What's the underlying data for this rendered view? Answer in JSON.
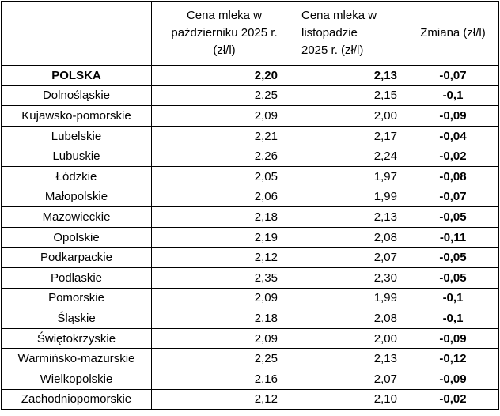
{
  "colors": {
    "border": "#000000",
    "background": "#ffffff",
    "text": "#000000"
  },
  "chart_data": {
    "type": "table",
    "title": "",
    "columns": [
      "",
      "Cena mleka w\npaździerniku 2025 r.\n(zł/l)",
      "Cena mleka w\nlistopadzie\n2025 r. (zł/l)",
      "Zmiana (zł/l)"
    ],
    "rows": [
      {
        "region": "POLSKA",
        "october_2025": "2,20",
        "november_2025": "2,13",
        "change": "-0,07",
        "emphasis": true
      },
      {
        "region": "Dolnośląskie",
        "october_2025": "2,25",
        "november_2025": "2,15",
        "change": "-0,1",
        "emphasis": false
      },
      {
        "region": "Kujawsko-pomorskie",
        "october_2025": "2,09",
        "november_2025": "2,00",
        "change": "-0,09",
        "emphasis": false
      },
      {
        "region": "Lubelskie",
        "october_2025": "2,21",
        "november_2025": "2,17",
        "change": "-0,04",
        "emphasis": false
      },
      {
        "region": "Lubuskie",
        "october_2025": "2,26",
        "november_2025": "2,24",
        "change": "-0,02",
        "emphasis": false
      },
      {
        "region": "Łódzkie",
        "october_2025": "2,05",
        "november_2025": "1,97",
        "change": "-0,08",
        "emphasis": false
      },
      {
        "region": "Małopolskie",
        "october_2025": "2,06",
        "november_2025": "1,99",
        "change": "-0,07",
        "emphasis": false
      },
      {
        "region": "Mazowieckie",
        "october_2025": "2,18",
        "november_2025": "2,13",
        "change": "-0,05",
        "emphasis": false
      },
      {
        "region": "Opolskie",
        "october_2025": "2,19",
        "november_2025": "2,08",
        "change": "-0,11",
        "emphasis": false
      },
      {
        "region": "Podkarpackie",
        "october_2025": "2,12",
        "november_2025": "2,07",
        "change": "-0,05",
        "emphasis": false
      },
      {
        "region": "Podlaskie",
        "october_2025": "2,35",
        "november_2025": "2,30",
        "change": "-0,05",
        "emphasis": false
      },
      {
        "region": "Pomorskie",
        "october_2025": "2,09",
        "november_2025": "1,99",
        "change": "-0,1",
        "emphasis": false
      },
      {
        "region": "Śląskie",
        "october_2025": "2,18",
        "november_2025": "2,08",
        "change": "-0,1",
        "emphasis": false
      },
      {
        "region": "Świętokrzyskie",
        "october_2025": "2,09",
        "november_2025": "2,00",
        "change": "-0,09",
        "emphasis": false
      },
      {
        "region": "Warmińsko-mazurskie",
        "october_2025": "2,25",
        "november_2025": "2,13",
        "change": "-0,12",
        "emphasis": false
      },
      {
        "region": "Wielkopolskie",
        "october_2025": "2,16",
        "november_2025": "2,07",
        "change": "-0,09",
        "emphasis": false
      },
      {
        "region": "Zachodniopomorskie",
        "october_2025": "2,12",
        "november_2025": "2,10",
        "change": "-0,02",
        "emphasis": false
      }
    ]
  }
}
